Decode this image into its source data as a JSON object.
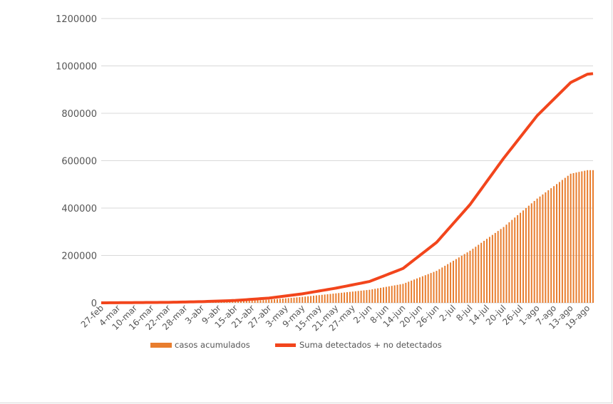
{
  "colors": {
    "bars": "#E87D2E",
    "line": "#F2451C",
    "grid": "#d9d9d9",
    "text": "#555555"
  },
  "chart_data": {
    "type": "bar+line",
    "title": "",
    "xlabel": "",
    "ylabel": "",
    "ylim": [
      0,
      1200000
    ],
    "y_ticks": [
      0,
      200000,
      400000,
      600000,
      800000,
      1000000,
      1200000
    ],
    "y_tick_labels": [
      "0",
      "200000",
      "400000",
      "600000",
      "800000",
      "1000000",
      "1200000"
    ],
    "x_start_label": "27-feb",
    "x_tick_labels": [
      "27-feb",
      "4-mar",
      "10-mar",
      "16-mar",
      "22-mar",
      "28-mar",
      "3-abr",
      "9-abr",
      "15-abr",
      "21-abr",
      "27-abr",
      "3-may",
      "9-may",
      "15-may",
      "21-may",
      "27-may",
      "2-jun",
      "8-jun",
      "14-jun",
      "20-jun",
      "26-jun",
      "2-jul",
      "8-jul",
      "14-jul",
      "20-jul",
      "26-jul",
      "1-ago",
      "7-ago",
      "13-ago",
      "19-ago"
    ],
    "grid": true,
    "legend_position": "bottom",
    "series": [
      {
        "name": "casos acumulados",
        "kind": "bar",
        "anchors": [
          [
            "27-feb",
            0
          ],
          [
            "22-mar",
            1000
          ],
          [
            "3-abr",
            2500
          ],
          [
            "15-abr",
            6000
          ],
          [
            "27-abr",
            13000
          ],
          [
            "9-may",
            25000
          ],
          [
            "21-may",
            40000
          ],
          [
            "2-jun",
            55000
          ],
          [
            "14-jun",
            80000
          ],
          [
            "26-jun",
            135000
          ],
          [
            "8-jul",
            220000
          ],
          [
            "20-jul",
            320000
          ],
          [
            "1-ago",
            440000
          ],
          [
            "13-ago",
            545000
          ],
          [
            "19-ago",
            560000
          ],
          [
            "23-ago",
            560000
          ]
        ]
      },
      {
        "name": "Suma detectados + no detectados",
        "kind": "line",
        "anchors": [
          [
            "27-feb",
            0
          ],
          [
            "22-mar",
            2000
          ],
          [
            "3-abr",
            5000
          ],
          [
            "15-abr",
            10000
          ],
          [
            "27-abr",
            20000
          ],
          [
            "9-may",
            38000
          ],
          [
            "21-may",
            62000
          ],
          [
            "2-jun",
            90000
          ],
          [
            "14-jun",
            145000
          ],
          [
            "26-jun",
            255000
          ],
          [
            "8-jul",
            415000
          ],
          [
            "20-jul",
            610000
          ],
          [
            "1-ago",
            790000
          ],
          [
            "13-ago",
            930000
          ],
          [
            "19-ago",
            965000
          ],
          [
            "23-ago",
            970000
          ]
        ]
      }
    ]
  },
  "legend": {
    "bars_label": "casos acumulados",
    "line_label": "Suma detectados + no detectados"
  }
}
